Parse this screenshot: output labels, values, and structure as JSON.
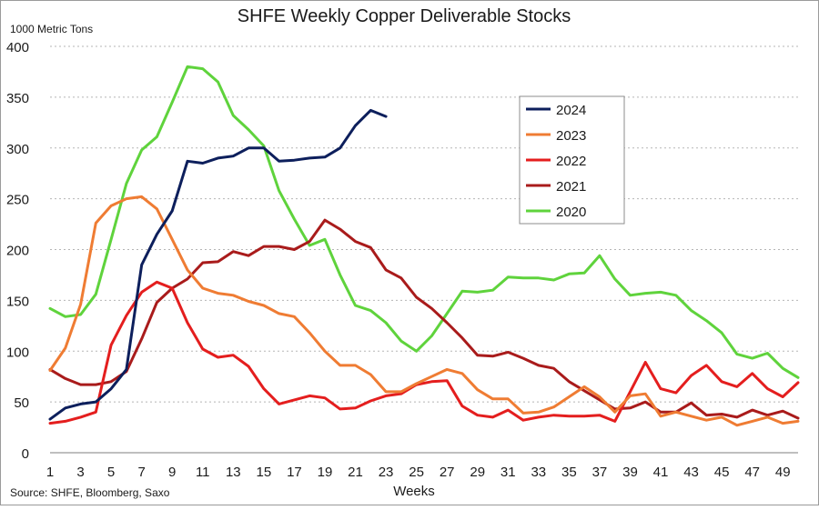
{
  "chart_data": {
    "type": "line",
    "title": "SHFE Weekly Copper Deliverable Stocks",
    "ylabel": "1000 Metric Tons",
    "xlabel": "Weeks",
    "source": "Source: SHFE, Bloomberg, Saxo",
    "ylim": [
      0,
      400
    ],
    "yticks": [
      0,
      50,
      100,
      150,
      200,
      250,
      300,
      350,
      400
    ],
    "xlim": [
      1,
      50
    ],
    "xticks": [
      1,
      3,
      5,
      7,
      9,
      11,
      13,
      15,
      17,
      19,
      21,
      23,
      25,
      27,
      29,
      31,
      33,
      35,
      37,
      39,
      41,
      43,
      45,
      47,
      49
    ],
    "grid": true,
    "legend_position": "upper-center-right",
    "series": [
      {
        "name": "2024",
        "color": "#0d1f5c",
        "values": [
          33,
          44,
          48,
          50,
          63,
          82,
          185,
          215,
          238,
          287,
          285,
          290,
          292,
          300,
          300,
          287,
          288,
          290,
          291,
          300,
          322,
          337,
          331
        ]
      },
      {
        "name": "2023",
        "color": "#ef7c33",
        "values": [
          81,
          103,
          146,
          226,
          243,
          250,
          252,
          240,
          210,
          180,
          162,
          157,
          155,
          149,
          145,
          137,
          134,
          118,
          100,
          86,
          86,
          77,
          60,
          60,
          68,
          75,
          82,
          78,
          62,
          53,
          53,
          39,
          40,
          45,
          55,
          65,
          55,
          40,
          56,
          58,
          36,
          40,
          36,
          32,
          35,
          27,
          31,
          35,
          29,
          31
        ]
      },
      {
        "name": "2022",
        "color": "#e41e1e",
        "values": [
          29,
          31,
          35,
          40,
          106,
          135,
          158,
          168,
          162,
          128,
          102,
          94,
          96,
          85,
          63,
          48,
          52,
          56,
          54,
          43,
          44,
          51,
          56,
          58,
          67,
          70,
          71,
          46,
          37,
          35,
          42,
          32,
          35,
          37,
          36,
          36,
          37,
          31,
          60,
          89,
          63,
          59,
          76,
          86,
          70,
          65,
          78,
          63,
          55,
          69
        ]
      },
      {
        "name": "2021",
        "color": "#a91b1b",
        "values": [
          82,
          73,
          67,
          67,
          70,
          80,
          112,
          148,
          162,
          171,
          187,
          188,
          198,
          194,
          203,
          203,
          200,
          208,
          229,
          220,
          208,
          202,
          180,
          172,
          153,
          142,
          128,
          113,
          96,
          95,
          99,
          93,
          86,
          83,
          70,
          61,
          52,
          43,
          44,
          50,
          40,
          40,
          49,
          37,
          38,
          35,
          42,
          37,
          41,
          34
        ]
      },
      {
        "name": "2020",
        "color": "#5fd33c",
        "values": [
          142,
          134,
          136,
          156,
          210,
          265,
          298,
          311,
          345,
          380,
          378,
          365,
          332,
          318,
          302,
          258,
          230,
          204,
          210,
          175,
          145,
          140,
          128,
          110,
          100,
          115,
          137,
          159,
          158,
          160,
          173,
          172,
          172,
          170,
          176,
          177,
          194,
          171,
          155,
          157,
          158,
          155,
          140,
          130,
          118,
          97,
          93,
          98,
          83,
          74
        ]
      }
    ]
  }
}
